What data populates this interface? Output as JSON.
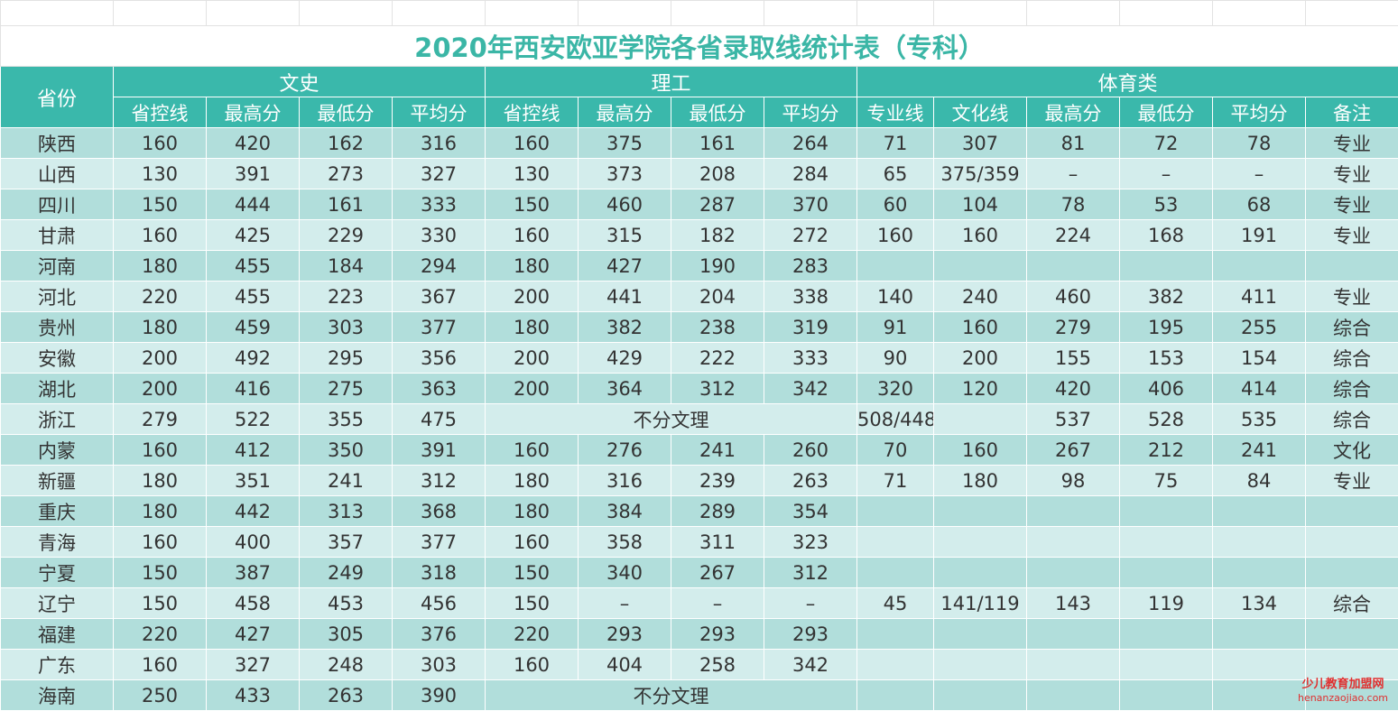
{
  "title": "2020年西安欧亚学院各省录取线统计表（专科）",
  "header": {
    "province": "省份",
    "group_wenshi": "文史",
    "group_ligong": "理工",
    "group_tiyu": "体育类",
    "sub_wenshi": [
      "省控线",
      "最高分",
      "最低分",
      "平均分"
    ],
    "sub_ligong": [
      "省控线",
      "最高分",
      "最低分",
      "平均分"
    ],
    "sub_tiyu": [
      "专业线",
      "文化线",
      "最高分",
      "最低分",
      "平均分",
      "备注"
    ]
  },
  "rows": [
    {
      "province": "陕西",
      "ws": [
        "160",
        "420",
        "162",
        "316"
      ],
      "lg": [
        "160",
        "375",
        "161",
        "264"
      ],
      "ty": [
        "71",
        "307",
        "81",
        "72",
        "78",
        "专业"
      ]
    },
    {
      "province": "山西",
      "ws": [
        "130",
        "391",
        "273",
        "327"
      ],
      "lg": [
        "130",
        "373",
        "208",
        "284"
      ],
      "ty": [
        "65",
        "375/359",
        "–",
        "–",
        "–",
        "专业"
      ]
    },
    {
      "province": "四川",
      "ws": [
        "150",
        "444",
        "161",
        "333"
      ],
      "lg": [
        "150",
        "460",
        "287",
        "370"
      ],
      "ty": [
        "60",
        "104",
        "78",
        "53",
        "68",
        "专业"
      ]
    },
    {
      "province": "甘肃",
      "ws": [
        "160",
        "425",
        "229",
        "330"
      ],
      "lg": [
        "160",
        "315",
        "182",
        "272"
      ],
      "ty": [
        "160",
        "160",
        "224",
        "168",
        "191",
        "专业"
      ]
    },
    {
      "province": "河南",
      "ws": [
        "180",
        "455",
        "184",
        "294"
      ],
      "lg": [
        "180",
        "427",
        "190",
        "283"
      ],
      "ty": [
        "",
        "",
        "",
        "",
        "",
        ""
      ]
    },
    {
      "province": "河北",
      "ws": [
        "220",
        "455",
        "223",
        "367"
      ],
      "lg": [
        "200",
        "441",
        "204",
        "338"
      ],
      "ty": [
        "140",
        "240",
        "460",
        "382",
        "411",
        "专业"
      ]
    },
    {
      "province": "贵州",
      "ws": [
        "180",
        "459",
        "303",
        "377"
      ],
      "lg": [
        "180",
        "382",
        "238",
        "319"
      ],
      "ty": [
        "91",
        "160",
        "279",
        "195",
        "255",
        "综合"
      ]
    },
    {
      "province": "安徽",
      "ws": [
        "200",
        "492",
        "295",
        "356"
      ],
      "lg": [
        "200",
        "429",
        "222",
        "333"
      ],
      "ty": [
        "90",
        "200",
        "155",
        "153",
        "154",
        "综合"
      ]
    },
    {
      "province": "湖北",
      "ws": [
        "200",
        "416",
        "275",
        "363"
      ],
      "lg": [
        "200",
        "364",
        "312",
        "342"
      ],
      "ty": [
        "320",
        "120",
        "420",
        "406",
        "414",
        "综合"
      ]
    },
    {
      "province": "浙江",
      "ws": [
        "279",
        "522",
        "355",
        "475"
      ],
      "lg_merged": "不分文理",
      "ty": [
        "508/448",
        "",
        "537",
        "528",
        "535",
        "综合"
      ]
    },
    {
      "province": "内蒙",
      "ws": [
        "160",
        "412",
        "350",
        "391"
      ],
      "lg": [
        "160",
        "276",
        "241",
        "260"
      ],
      "ty": [
        "70",
        "160",
        "267",
        "212",
        "241",
        "文化"
      ]
    },
    {
      "province": "新疆",
      "ws": [
        "180",
        "351",
        "241",
        "312"
      ],
      "lg": [
        "180",
        "316",
        "239",
        "263"
      ],
      "ty": [
        "71",
        "180",
        "98",
        "75",
        "84",
        "专业"
      ]
    },
    {
      "province": "重庆",
      "ws": [
        "180",
        "442",
        "313",
        "368"
      ],
      "lg": [
        "180",
        "384",
        "289",
        "354"
      ],
      "ty": [
        "",
        "",
        "",
        "",
        "",
        ""
      ]
    },
    {
      "province": "青海",
      "ws": [
        "160",
        "400",
        "357",
        "377"
      ],
      "lg": [
        "160",
        "358",
        "311",
        "323"
      ],
      "ty": [
        "",
        "",
        "",
        "",
        "",
        ""
      ]
    },
    {
      "province": "宁夏",
      "ws": [
        "150",
        "387",
        "249",
        "318"
      ],
      "lg": [
        "150",
        "340",
        "267",
        "312"
      ],
      "ty": [
        "",
        "",
        "",
        "",
        "",
        ""
      ]
    },
    {
      "province": "辽宁",
      "ws": [
        "150",
        "458",
        "453",
        "456"
      ],
      "lg": [
        "150",
        "–",
        "–",
        "–"
      ],
      "ty": [
        "45",
        "141/119",
        "143",
        "119",
        "134",
        "综合"
      ]
    },
    {
      "province": "福建",
      "ws": [
        "220",
        "427",
        "305",
        "376"
      ],
      "lg": [
        "220",
        "293",
        "293",
        "293"
      ],
      "ty": [
        "",
        "",
        "",
        "",
        "",
        ""
      ]
    },
    {
      "province": "广东",
      "ws": [
        "160",
        "327",
        "248",
        "303"
      ],
      "lg": [
        "160",
        "404",
        "258",
        "342"
      ],
      "ty": [
        "",
        "",
        "",
        "",
        "",
        ""
      ]
    },
    {
      "province": "海南",
      "ws": [
        "250",
        "433",
        "263",
        "390"
      ],
      "lg_merged": "不分文理",
      "ty": [
        "",
        "",
        "",
        "",
        "",
        ""
      ]
    }
  ],
  "watermark": {
    "cn": "少儿教育加盟网",
    "en": "henanzaojiao.com"
  }
}
